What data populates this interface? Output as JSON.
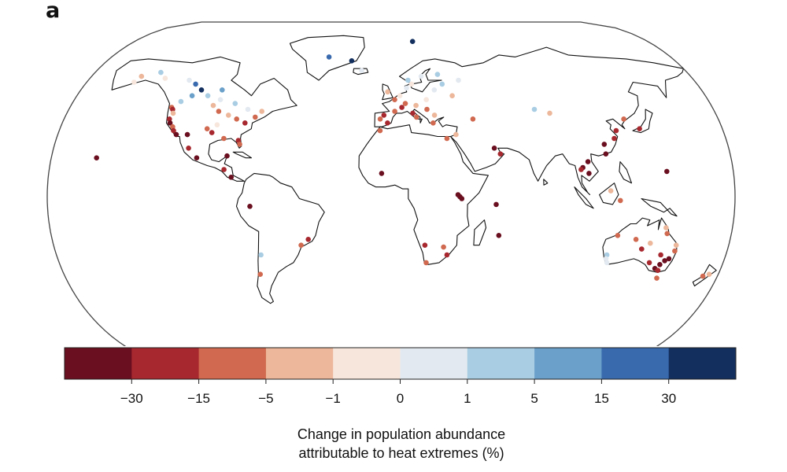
{
  "panel_label": "a",
  "colorbar": {
    "title_line1": "Change in population abundance",
    "title_line2": "attributable to heat extremes (%)",
    "ticks": [
      "−30",
      "−15",
      "−5",
      "−1",
      "0",
      "1",
      "5",
      "15",
      "30"
    ],
    "colors": [
      "#6a0f1f",
      "#a7282e",
      "#d0694f",
      "#ecb79a",
      "#f7e6dc",
      "#e3e9f0",
      "#a9cde3",
      "#6aa0c9",
      "#3a6aae",
      "#132f5e"
    ]
  },
  "map": {
    "projection": "Robinson-like world outline",
    "land_fill": "#ffffff",
    "outline_color": "#111111"
  },
  "sites": [
    {
      "lat": 46,
      "lon": -123,
      "bin": 2
    },
    {
      "lat": 45,
      "lon": -122,
      "bin": 1
    },
    {
      "lat": 43,
      "lon": -121,
      "bin": 3
    },
    {
      "lat": 40,
      "lon": -122,
      "bin": 1
    },
    {
      "lat": 38,
      "lon": -121,
      "bin": 0
    },
    {
      "lat": 36,
      "lon": -119,
      "bin": 2
    },
    {
      "lat": 34,
      "lon": -118,
      "bin": 1
    },
    {
      "lat": 32,
      "lon": -116,
      "bin": 0
    },
    {
      "lat": 49,
      "lon": -119,
      "bin": 6
    },
    {
      "lat": 52,
      "lon": -114,
      "bin": 7
    },
    {
      "lat": 55,
      "lon": -110,
      "bin": 9
    },
    {
      "lat": 58,
      "lon": -115,
      "bin": 8
    },
    {
      "lat": 60,
      "lon": -120,
      "bin": 5
    },
    {
      "lat": 61,
      "lon": -135,
      "bin": 4
    },
    {
      "lat": 64,
      "lon": -140,
      "bin": 6
    },
    {
      "lat": 62,
      "lon": -150,
      "bin": 3
    },
    {
      "lat": 59,
      "lon": -152,
      "bin": 4
    },
    {
      "lat": 47,
      "lon": -100,
      "bin": 3
    },
    {
      "lat": 44,
      "lon": -96,
      "bin": 2
    },
    {
      "lat": 42,
      "lon": -90,
      "bin": 3
    },
    {
      "lat": 40,
      "lon": -85,
      "bin": 2
    },
    {
      "lat": 38,
      "lon": -80,
      "bin": 1
    },
    {
      "lat": 41,
      "lon": -75,
      "bin": 2
    },
    {
      "lat": 44,
      "lon": -72,
      "bin": 3
    },
    {
      "lat": 45,
      "lon": -80,
      "bin": 5
    },
    {
      "lat": 48,
      "lon": -88,
      "bin": 6
    },
    {
      "lat": 50,
      "lon": -97,
      "bin": 5
    },
    {
      "lat": 52,
      "lon": -105,
      "bin": 6
    },
    {
      "lat": 55,
      "lon": -98,
      "bin": 7
    },
    {
      "lat": 37,
      "lon": -95,
      "bin": 4
    },
    {
      "lat": 35,
      "lon": -100,
      "bin": 2
    },
    {
      "lat": 33,
      "lon": -97,
      "bin": 1
    },
    {
      "lat": 30,
      "lon": -90,
      "bin": 2
    },
    {
      "lat": 29,
      "lon": -82,
      "bin": 1
    },
    {
      "lat": 27,
      "lon": -81,
      "bin": 2
    },
    {
      "lat": 32,
      "lon": -110,
      "bin": 0
    },
    {
      "lat": 25,
      "lon": -108,
      "bin": 1
    },
    {
      "lat": 20,
      "lon": -103,
      "bin": 0
    },
    {
      "lat": 21,
      "lon": -87,
      "bin": 0
    },
    {
      "lat": 14,
      "lon": -88,
      "bin": 1
    },
    {
      "lat": 10,
      "lon": -84,
      "bin": 0
    },
    {
      "lat": 20,
      "lon": -156,
      "bin": 0
    },
    {
      "lat": -5,
      "lon": -74,
      "bin": 0
    },
    {
      "lat": -30,
      "lon": -70,
      "bin": 6
    },
    {
      "lat": -22,
      "lon": -44,
      "bin": 1
    },
    {
      "lat": -25,
      "lon": -48,
      "bin": 2
    },
    {
      "lat": -40,
      "lon": -72,
      "bin": 2
    },
    {
      "lat": 72,
      "lon": -40,
      "bin": 8
    },
    {
      "lat": 70,
      "lon": -25,
      "bin": 9
    },
    {
      "lat": 80,
      "lon": 15,
      "bin": 9
    },
    {
      "lat": 65,
      "lon": -18,
      "bin": 5
    },
    {
      "lat": 60,
      "lon": 10,
      "bin": 6
    },
    {
      "lat": 62,
      "lon": 18,
      "bin": 5
    },
    {
      "lat": 58,
      "lon": 12,
      "bin": 4
    },
    {
      "lat": 56,
      "lon": 9,
      "bin": 5
    },
    {
      "lat": 54,
      "lon": -2,
      "bin": 3
    },
    {
      "lat": 52,
      "lon": 5,
      "bin": 4
    },
    {
      "lat": 50,
      "lon": 2,
      "bin": 2
    },
    {
      "lat": 48,
      "lon": 8,
      "bin": 2
    },
    {
      "lat": 47,
      "lon": 14,
      "bin": 3
    },
    {
      "lat": 46,
      "lon": 6,
      "bin": 1
    },
    {
      "lat": 44,
      "lon": 2,
      "bin": 2
    },
    {
      "lat": 42,
      "lon": -4,
      "bin": 1
    },
    {
      "lat": 40,
      "lon": -6,
      "bin": 2
    },
    {
      "lat": 38,
      "lon": -2,
      "bin": 1
    },
    {
      "lat": 41,
      "lon": 14,
      "bin": 2
    },
    {
      "lat": 43,
      "lon": 12,
      "bin": 1
    },
    {
      "lat": 45,
      "lon": 20,
      "bin": 2
    },
    {
      "lat": 42,
      "lon": 24,
      "bin": 3
    },
    {
      "lat": 38,
      "lon": 23,
      "bin": 2
    },
    {
      "lat": 50,
      "lon": 20,
      "bin": 4
    },
    {
      "lat": 55,
      "lon": 25,
      "bin": 5
    },
    {
      "lat": 58,
      "lon": 30,
      "bin": 6
    },
    {
      "lat": 60,
      "lon": 40,
      "bin": 5
    },
    {
      "lat": 63,
      "lon": 28,
      "bin": 6
    },
    {
      "lat": 52,
      "lon": 35,
      "bin": 3
    },
    {
      "lat": 40,
      "lon": 45,
      "bin": 2
    },
    {
      "lat": 32,
      "lon": 35,
      "bin": 3
    },
    {
      "lat": 30,
      "lon": 30,
      "bin": 2
    },
    {
      "lat": 34,
      "lon": -6,
      "bin": 2
    },
    {
      "lat": 25,
      "lon": 55,
      "bin": 0
    },
    {
      "lat": 22,
      "lon": 58,
      "bin": 1
    },
    {
      "lat": 45,
      "lon": 80,
      "bin": 6
    },
    {
      "lat": 43,
      "lon": 88,
      "bin": 3
    },
    {
      "lat": 12,
      "lon": -5,
      "bin": 0
    },
    {
      "lat": 0,
      "lon": 36,
      "bin": 0
    },
    {
      "lat": -1,
      "lon": 37,
      "bin": 0
    },
    {
      "lat": 1,
      "lon": 35,
      "bin": 0
    },
    {
      "lat": -4,
      "lon": 55,
      "bin": 0
    },
    {
      "lat": -20,
      "lon": 57,
      "bin": 0
    },
    {
      "lat": -26,
      "lon": 28,
      "bin": 2
    },
    {
      "lat": -30,
      "lon": 30,
      "bin": 1
    },
    {
      "lat": -34,
      "lon": 19,
      "bin": 2
    },
    {
      "lat": -25,
      "lon": 18,
      "bin": 1
    },
    {
      "lat": 40,
      "lon": 128,
      "bin": 2
    },
    {
      "lat": 35,
      "lon": 135,
      "bin": 1
    },
    {
      "lat": 34,
      "lon": 122,
      "bin": 1
    },
    {
      "lat": 30,
      "lon": 120,
      "bin": 1
    },
    {
      "lat": 27,
      "lon": 114,
      "bin": 0
    },
    {
      "lat": 22,
      "lon": 114,
      "bin": 0
    },
    {
      "lat": 18,
      "lon": 104,
      "bin": 0
    },
    {
      "lat": 15,
      "lon": 101,
      "bin": 0
    },
    {
      "lat": 14,
      "lon": 100,
      "bin": 1
    },
    {
      "lat": 12,
      "lon": 104,
      "bin": 0
    },
    {
      "lat": 13,
      "lon": 145,
      "bin": 0
    },
    {
      "lat": 3,
      "lon": 115,
      "bin": 3
    },
    {
      "lat": -2,
      "lon": 120,
      "bin": 2
    },
    {
      "lat": -20,
      "lon": 120,
      "bin": 2
    },
    {
      "lat": -22,
      "lon": 130,
      "bin": 2
    },
    {
      "lat": -24,
      "lon": 138,
      "bin": 3
    },
    {
      "lat": -27,
      "lon": 134,
      "bin": 1
    },
    {
      "lat": -30,
      "lon": 145,
      "bin": 1
    },
    {
      "lat": -32,
      "lon": 150,
      "bin": 0
    },
    {
      "lat": -33,
      "lon": 148,
      "bin": 0
    },
    {
      "lat": -35,
      "lon": 146,
      "bin": 0
    },
    {
      "lat": -34,
      "lon": 140,
      "bin": 1
    },
    {
      "lat": -37,
      "lon": 144,
      "bin": 0
    },
    {
      "lat": -38,
      "lon": 146,
      "bin": 1
    },
    {
      "lat": -28,
      "lon": 152,
      "bin": 2
    },
    {
      "lat": -25,
      "lon": 152,
      "bin": 3
    },
    {
      "lat": -30,
      "lon": 116,
      "bin": 6
    },
    {
      "lat": -32,
      "lon": 116,
      "bin": 5
    },
    {
      "lat": -34,
      "lon": 117,
      "bin": 5
    },
    {
      "lat": -19,
      "lon": 146,
      "bin": 2
    },
    {
      "lat": -16,
      "lon": 145,
      "bin": 3
    },
    {
      "lat": -42,
      "lon": 147,
      "bin": 2
    },
    {
      "lat": -40,
      "lon": 175,
      "bin": 3
    },
    {
      "lat": -41,
      "lon": 172,
      "bin": 2
    }
  ]
}
